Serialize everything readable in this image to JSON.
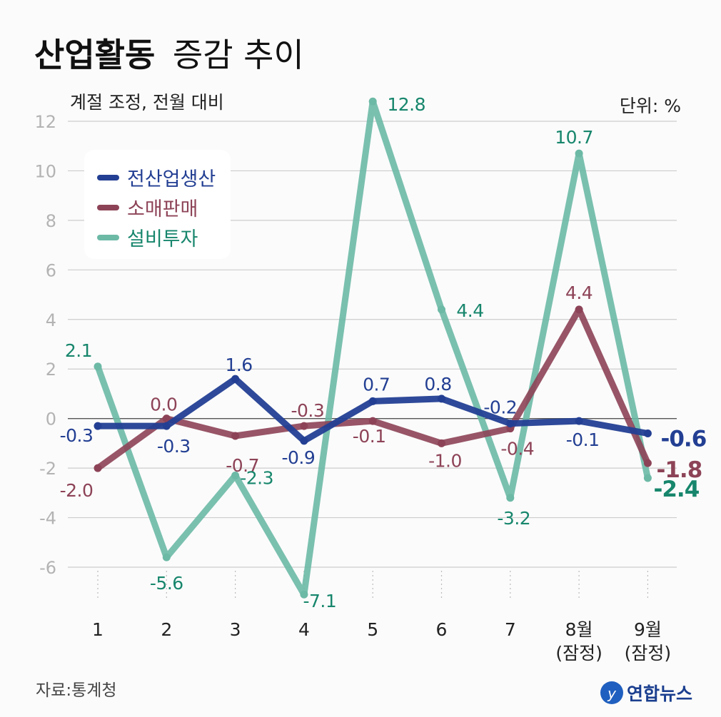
{
  "header": {
    "title_bold": "산업활동",
    "title_rest": "증감 추이",
    "subtitle": "계절 조정, 전월 대비",
    "unit": "단위: %"
  },
  "footer": {
    "source": "자료:통계청",
    "logo_text": "연합뉴스"
  },
  "colors": {
    "production": "#233f93",
    "retail": "#8d4357",
    "investment": "#6cb9a6",
    "investment_label": "#17866c",
    "grid": "#cccccc",
    "zero_line": "#555555",
    "tick": "#b3b3b3"
  },
  "chart_data": {
    "type": "line",
    "title": "산업활동 증감 추이",
    "subtitle": "계절 조정, 전월 대비",
    "unit": "%",
    "x_labels": [
      [
        "1"
      ],
      [
        "2"
      ],
      [
        "3"
      ],
      [
        "4"
      ],
      [
        "5"
      ],
      [
        "6"
      ],
      [
        "7"
      ],
      [
        "8월",
        "(잠정)"
      ],
      [
        "9월",
        "(잠정)"
      ]
    ],
    "ylim": [
      -6,
      12
    ],
    "yticks": [
      12,
      10,
      8,
      6,
      4,
      2,
      0,
      -2,
      -4,
      -6
    ],
    "grid": true,
    "legend_position": "top-left",
    "series": [
      {
        "name": "전산업생산",
        "values": [
          -0.3,
          -0.3,
          1.6,
          -0.9,
          0.7,
          0.8,
          -0.2,
          -0.1,
          -0.6
        ],
        "labels": [
          "-0.3",
          "-0.3",
          "1.6",
          "-0.9",
          "0.7",
          "0.8",
          "-0.2",
          "-0.1",
          "-0.6"
        ]
      },
      {
        "name": "소매판매",
        "values": [
          -2.0,
          0.0,
          -0.7,
          -0.3,
          -0.1,
          -1.0,
          -0.4,
          4.4,
          -1.8
        ],
        "labels": [
          "-2.0",
          "0.0",
          "-0.7",
          "-0.3",
          "-0.1",
          "-1.0",
          "-0.4",
          "4.4",
          "-1.8"
        ]
      },
      {
        "name": "설비투자",
        "values": [
          2.1,
          -5.6,
          -2.3,
          -7.1,
          12.8,
          4.4,
          -3.2,
          10.7,
          -2.4
        ],
        "labels": [
          "2.1",
          "-5.6",
          "-2.3",
          "-7.1",
          "12.8",
          "4.4",
          "-3.2",
          "10.7",
          "-2.4"
        ]
      }
    ]
  }
}
